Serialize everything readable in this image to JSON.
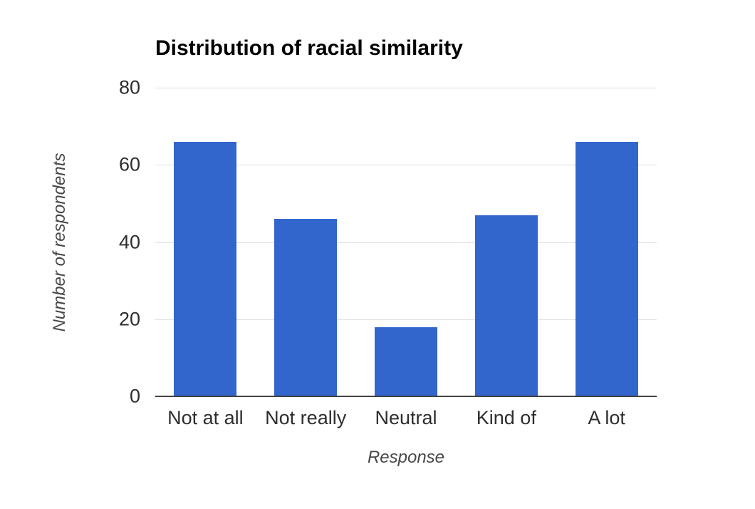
{
  "chart_data": {
    "type": "bar",
    "title": "Distribution of racial similarity",
    "categories": [
      "Not at all",
      "Not really",
      "Neutral",
      "Kind of",
      "A lot"
    ],
    "values": [
      66,
      46,
      18,
      47,
      66
    ],
    "xlabel": "Response",
    "ylabel": "Number of respondents",
    "yticks": [
      0,
      20,
      40,
      60,
      80
    ],
    "ylim": [
      0,
      80
    ],
    "bar_color": "#3366cc",
    "gridline_color": "#e0e0e0",
    "axis_line_color": "#424242",
    "background": "#ffffff",
    "grid": true,
    "legend": "none"
  }
}
